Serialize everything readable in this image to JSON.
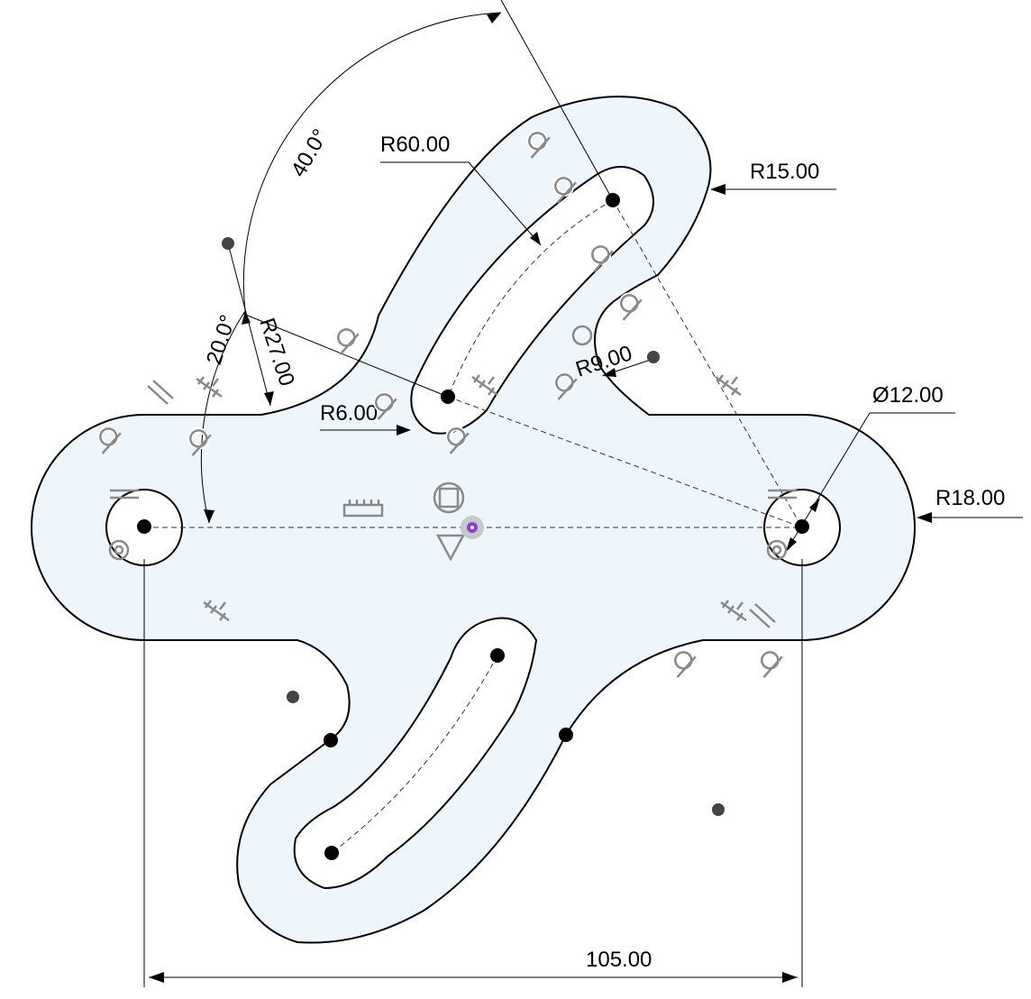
{
  "colors": {
    "profile_fill": "#eef6fc",
    "line": "#000000",
    "construction_line": "#333333",
    "constraint_glyph": "#8a8a8a",
    "origin": "#8b3fd6"
  },
  "dimensions": {
    "slot_arc_radius": "R60.00",
    "top_end_radius": "R15.00",
    "angle_top": "40.0°",
    "angle_bottom": "20.0°",
    "fillet_radius_large": "R27.00",
    "fillet_radius_inner": "R9.00",
    "slot_end_radius": "R6.00",
    "hole_diameter": "Ø12.00",
    "end_radius": "R18.00",
    "center_distance": "105.00"
  },
  "constraint_icons": [
    "tangent-icon",
    "parallel-icon",
    "coincident-icon",
    "equal-icon",
    "fix-icon",
    "midpoint-icon",
    "concentric-icon"
  ]
}
